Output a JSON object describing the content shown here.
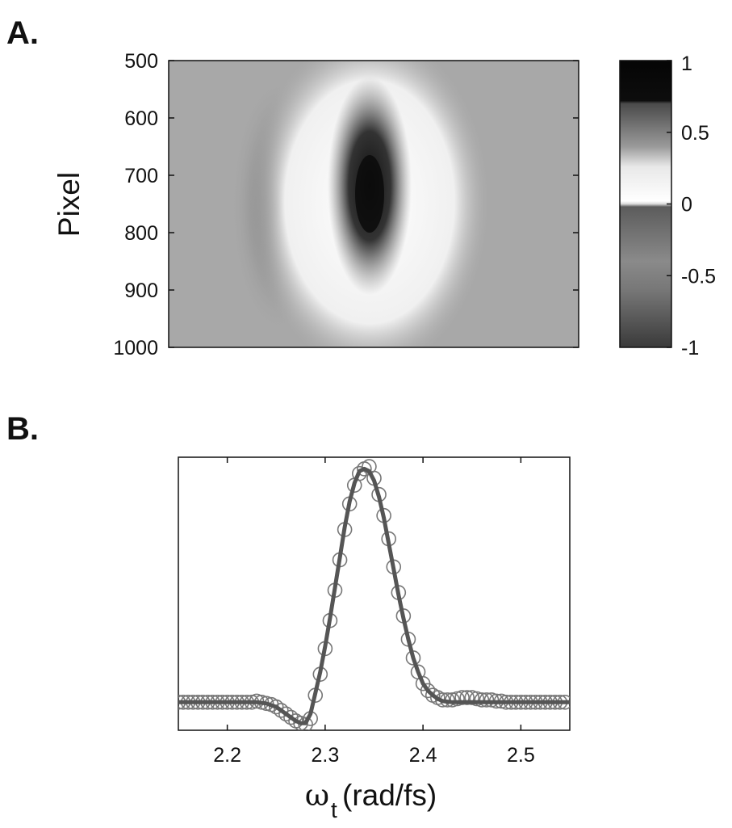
{
  "figure": {
    "panel_a_label": "A.",
    "panel_b_label": "B."
  },
  "chart_data": [
    {
      "type": "heatmap",
      "panel": "A.",
      "title": "",
      "xlabel": "",
      "ylabel": "Pixel",
      "ylim": [
        500,
        1000
      ],
      "y_reversed": true,
      "ytick_labels": [
        "500",
        "600",
        "700",
        "800",
        "900",
        "1000"
      ],
      "xtick_labels": [],
      "grid": false,
      "colormap": "gray",
      "colorbar": {
        "range": [
          -1,
          1
        ],
        "tick_labels": [
          "1",
          "0.5",
          "0",
          "-0.5",
          "-1"
        ],
        "ticks": [
          1,
          0.5,
          0,
          -0.5,
          -1
        ]
      },
      "features": [
        {
          "name": "central-peak",
          "x_frac": 0.49,
          "y_center": 730,
          "y_half_width": 110,
          "value": 0.9
        },
        {
          "name": "left-negative-band",
          "x_frac": 0.3,
          "value": -0.45
        },
        {
          "name": "positive-ring",
          "x_frac": 0.49,
          "value": 0.25
        }
      ]
    },
    {
      "type": "line",
      "panel": "B.",
      "title": "",
      "xlabel": "ω",
      "xlabel_subscript": "t",
      "xlabel_units": "(rad/fs)",
      "ylabel": "",
      "xlim": [
        2.15,
        2.55
      ],
      "ylim": [
        -0.12,
        1.05
      ],
      "xtick_labels": [
        "2.2",
        "2.3",
        "2.4",
        "2.5"
      ],
      "xticks": [
        2.2,
        2.3,
        2.4,
        2.5
      ],
      "ytick_labels": [],
      "grid": false,
      "series": [
        {
          "style": "solid-line",
          "color": "#555555",
          "x": [
            2.15,
            2.16,
            2.17,
            2.18,
            2.19,
            2.2,
            2.21,
            2.22,
            2.23,
            2.24,
            2.25,
            2.26,
            2.27,
            2.275,
            2.28,
            2.285,
            2.29,
            2.295,
            2.3,
            2.305,
            2.31,
            2.315,
            2.32,
            2.325,
            2.33,
            2.335,
            2.34,
            2.345,
            2.35,
            2.355,
            2.36,
            2.365,
            2.37,
            2.375,
            2.38,
            2.385,
            2.39,
            2.395,
            2.4,
            2.405,
            2.41,
            2.415,
            2.42,
            2.43,
            2.44,
            2.45,
            2.46,
            2.47,
            2.48,
            2.49,
            2.5,
            2.51,
            2.52,
            2.53,
            2.54,
            2.55
          ],
          "y": [
            0.0,
            0.0,
            0.0,
            0.0,
            0.0,
            0.0,
            0.0,
            0.0,
            0.0,
            -0.005,
            -0.02,
            -0.05,
            -0.08,
            -0.09,
            -0.09,
            -0.05,
            0.04,
            0.13,
            0.24,
            0.36,
            0.49,
            0.62,
            0.75,
            0.86,
            0.94,
            0.99,
            1.0,
            0.99,
            0.95,
            0.88,
            0.79,
            0.68,
            0.57,
            0.46,
            0.36,
            0.27,
            0.19,
            0.13,
            0.08,
            0.05,
            0.03,
            0.015,
            0.005,
            0.0,
            0.0,
            0.0,
            0.0,
            0.0,
            0.0,
            0.0,
            0.0,
            0.0,
            0.0,
            0.0,
            0.0,
            0.0
          ]
        },
        {
          "style": "open-circles",
          "color": "#777777",
          "x": [
            2.15,
            2.155,
            2.16,
            2.165,
            2.17,
            2.175,
            2.18,
            2.185,
            2.19,
            2.195,
            2.2,
            2.205,
            2.21,
            2.215,
            2.22,
            2.225,
            2.23,
            2.235,
            2.24,
            2.245,
            2.25,
            2.255,
            2.26,
            2.265,
            2.27,
            2.275,
            2.28,
            2.285,
            2.29,
            2.295,
            2.3,
            2.305,
            2.31,
            2.315,
            2.32,
            2.325,
            2.33,
            2.335,
            2.34,
            2.345,
            2.35,
            2.355,
            2.36,
            2.365,
            2.37,
            2.375,
            2.38,
            2.385,
            2.39,
            2.395,
            2.4,
            2.405,
            2.41,
            2.415,
            2.42,
            2.425,
            2.43,
            2.435,
            2.44,
            2.445,
            2.45,
            2.455,
            2.46,
            2.465,
            2.47,
            2.475,
            2.48,
            2.485,
            2.49,
            2.495,
            2.5,
            2.505,
            2.51,
            2.515,
            2.52,
            2.525,
            2.53,
            2.535,
            2.54,
            2.545
          ],
          "y": [
            0.0,
            0.0,
            0.0,
            0.0,
            0.0,
            0.0,
            0.0,
            0.0,
            0.0,
            0.0,
            0.0,
            0.0,
            0.0,
            0.0,
            0.0,
            0.0,
            0.005,
            0.0,
            -0.005,
            -0.01,
            -0.02,
            -0.035,
            -0.05,
            -0.065,
            -0.08,
            -0.09,
            -0.095,
            -0.07,
            0.03,
            0.12,
            0.23,
            0.35,
            0.48,
            0.61,
            0.74,
            0.85,
            0.93,
            0.98,
            1.0,
            1.01,
            0.96,
            0.89,
            0.8,
            0.7,
            0.58,
            0.47,
            0.37,
            0.27,
            0.19,
            0.13,
            0.08,
            0.05,
            0.03,
            0.02,
            0.01,
            0.01,
            0.01,
            0.015,
            0.02,
            0.02,
            0.02,
            0.015,
            0.01,
            0.01,
            0.01,
            0.005,
            0.005,
            0.0,
            0.0,
            0.0,
            0.0,
            0.0,
            0.0,
            0.0,
            0.0,
            0.0,
            0.0,
            0.0,
            0.0,
            0.0
          ]
        }
      ]
    }
  ]
}
